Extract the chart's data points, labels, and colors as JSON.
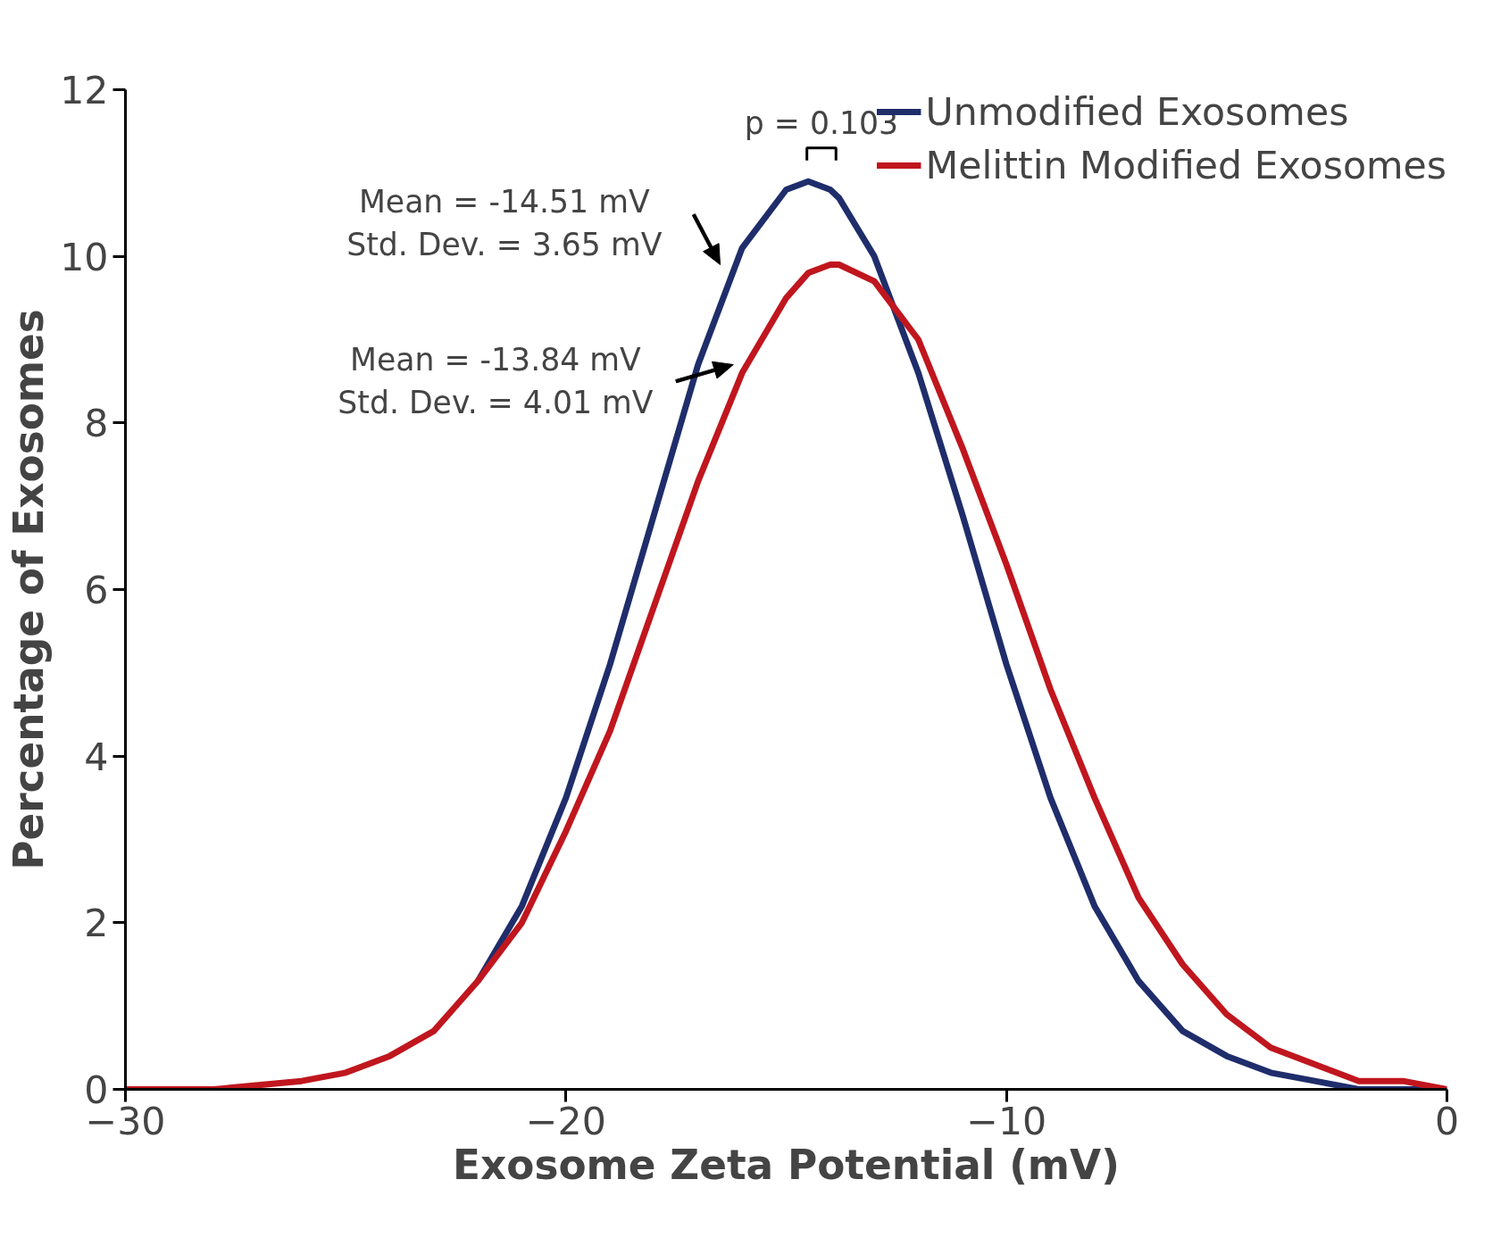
{
  "chart_data": {
    "type": "line",
    "xlabel": "Exosome Zeta Potential (mV)",
    "ylabel": "Percentage of Exosomes",
    "x": [
      -30,
      -28,
      -26,
      -25,
      -24,
      -23,
      -22,
      -21,
      -20,
      -19,
      -18,
      -17,
      -16,
      -15,
      -14.5,
      -14,
      -13.8,
      -13,
      -12,
      -11,
      -10,
      -9,
      -8,
      -7,
      -6,
      -5,
      -4,
      -3,
      -2,
      -1,
      0
    ],
    "series": [
      {
        "name": "Unmodified Exosomes",
        "color": "#1f2d6b",
        "values": [
          null,
          null,
          null,
          null,
          null,
          null,
          1.3,
          2.2,
          3.5,
          5.1,
          6.9,
          8.7,
          10.1,
          10.8,
          10.9,
          10.8,
          10.7,
          10.0,
          8.6,
          6.9,
          5.1,
          3.5,
          2.2,
          1.3,
          0.7,
          0.4,
          0.2,
          0.1,
          0.0,
          0.0,
          0.0
        ]
      },
      {
        "name": "Melittin Modified Exosomes",
        "color": "#c0161e",
        "values": [
          0.0,
          0.0,
          0.1,
          0.2,
          0.4,
          0.7,
          1.3,
          2.0,
          3.1,
          4.3,
          5.8,
          7.3,
          8.6,
          9.5,
          9.8,
          9.9,
          9.9,
          9.7,
          9.0,
          7.7,
          6.3,
          4.8,
          3.5,
          2.3,
          1.5,
          0.9,
          0.5,
          0.3,
          0.1,
          0.1,
          0.0
        ]
      }
    ],
    "xlim": [
      -30,
      0
    ],
    "xticks": [
      -30,
      -20,
      -10,
      0
    ],
    "ylim": [
      0,
      12
    ],
    "yticks": [
      0,
      2,
      4,
      6,
      8,
      10,
      12
    ],
    "annotations": [
      "Mean = -14.51 mV\nStd. Dev. = 3.65 mV",
      "Mean = -13.84 mV\nStd. Dev. = 4.01 mV",
      "p = 0.103"
    ],
    "legend": "top right",
    "grid": false,
    "line_style": "solid",
    "marker": "none"
  }
}
